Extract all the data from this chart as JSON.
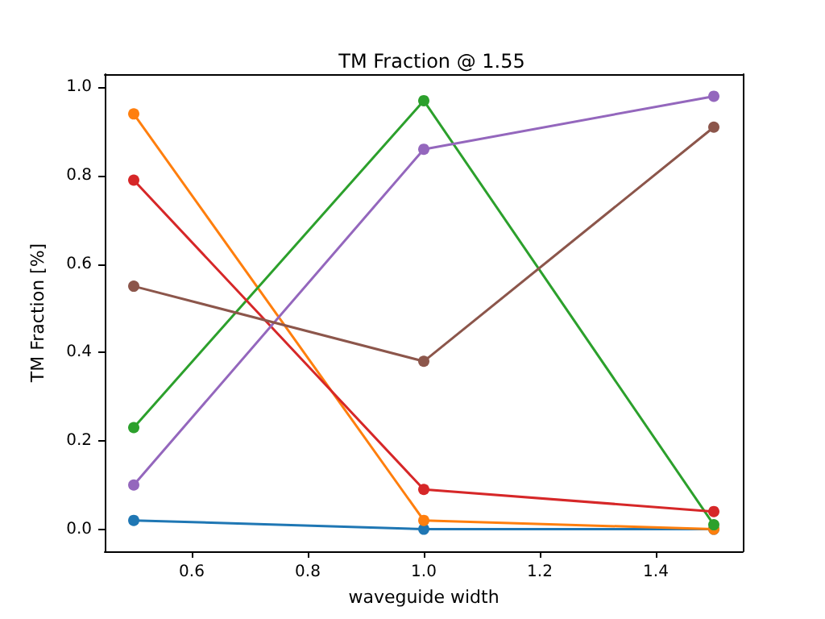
{
  "chart_data": {
    "type": "line",
    "title": "TM Fraction @ 1.55",
    "xlabel": "waveguide width",
    "ylabel": "TM Fraction [%]",
    "x": [
      0.5,
      1.0,
      1.5
    ],
    "series": [
      {
        "color": "#1f77b4",
        "values": [
          0.02,
          0.0,
          0.0
        ]
      },
      {
        "color": "#ff7f0e",
        "values": [
          0.94,
          0.02,
          0.0
        ]
      },
      {
        "color": "#2ca02c",
        "values": [
          0.23,
          0.97,
          0.01
        ]
      },
      {
        "color": "#d62728",
        "values": [
          0.79,
          0.09,
          0.04
        ]
      },
      {
        "color": "#9467bd",
        "values": [
          0.1,
          0.86,
          0.98
        ]
      },
      {
        "color": "#8c564b",
        "values": [
          0.55,
          0.38,
          0.91
        ]
      }
    ],
    "xlim": [
      0.45,
      1.55
    ],
    "xticks": [
      {
        "value": 0.6,
        "label": "0.6"
      },
      {
        "value": 0.8,
        "label": "0.8"
      },
      {
        "value": 1.0,
        "label": "1.0"
      },
      {
        "value": 1.2,
        "label": "1.2"
      },
      {
        "value": 1.4,
        "label": "1.4"
      }
    ],
    "ylim": [
      -0.05,
      1.03
    ],
    "yticks": [
      {
        "value": 0,
        "label": "0.0"
      },
      {
        "value": 0.2,
        "label": "0.2"
      },
      {
        "value": 0.4,
        "label": "0.4"
      },
      {
        "value": 0.6,
        "label": "0.6"
      },
      {
        "value": 0.8,
        "label": "0.8"
      },
      {
        "value": 1.0,
        "label": "1.0"
      }
    ],
    "grid": false,
    "marker": "circle",
    "line_style": "solid"
  }
}
